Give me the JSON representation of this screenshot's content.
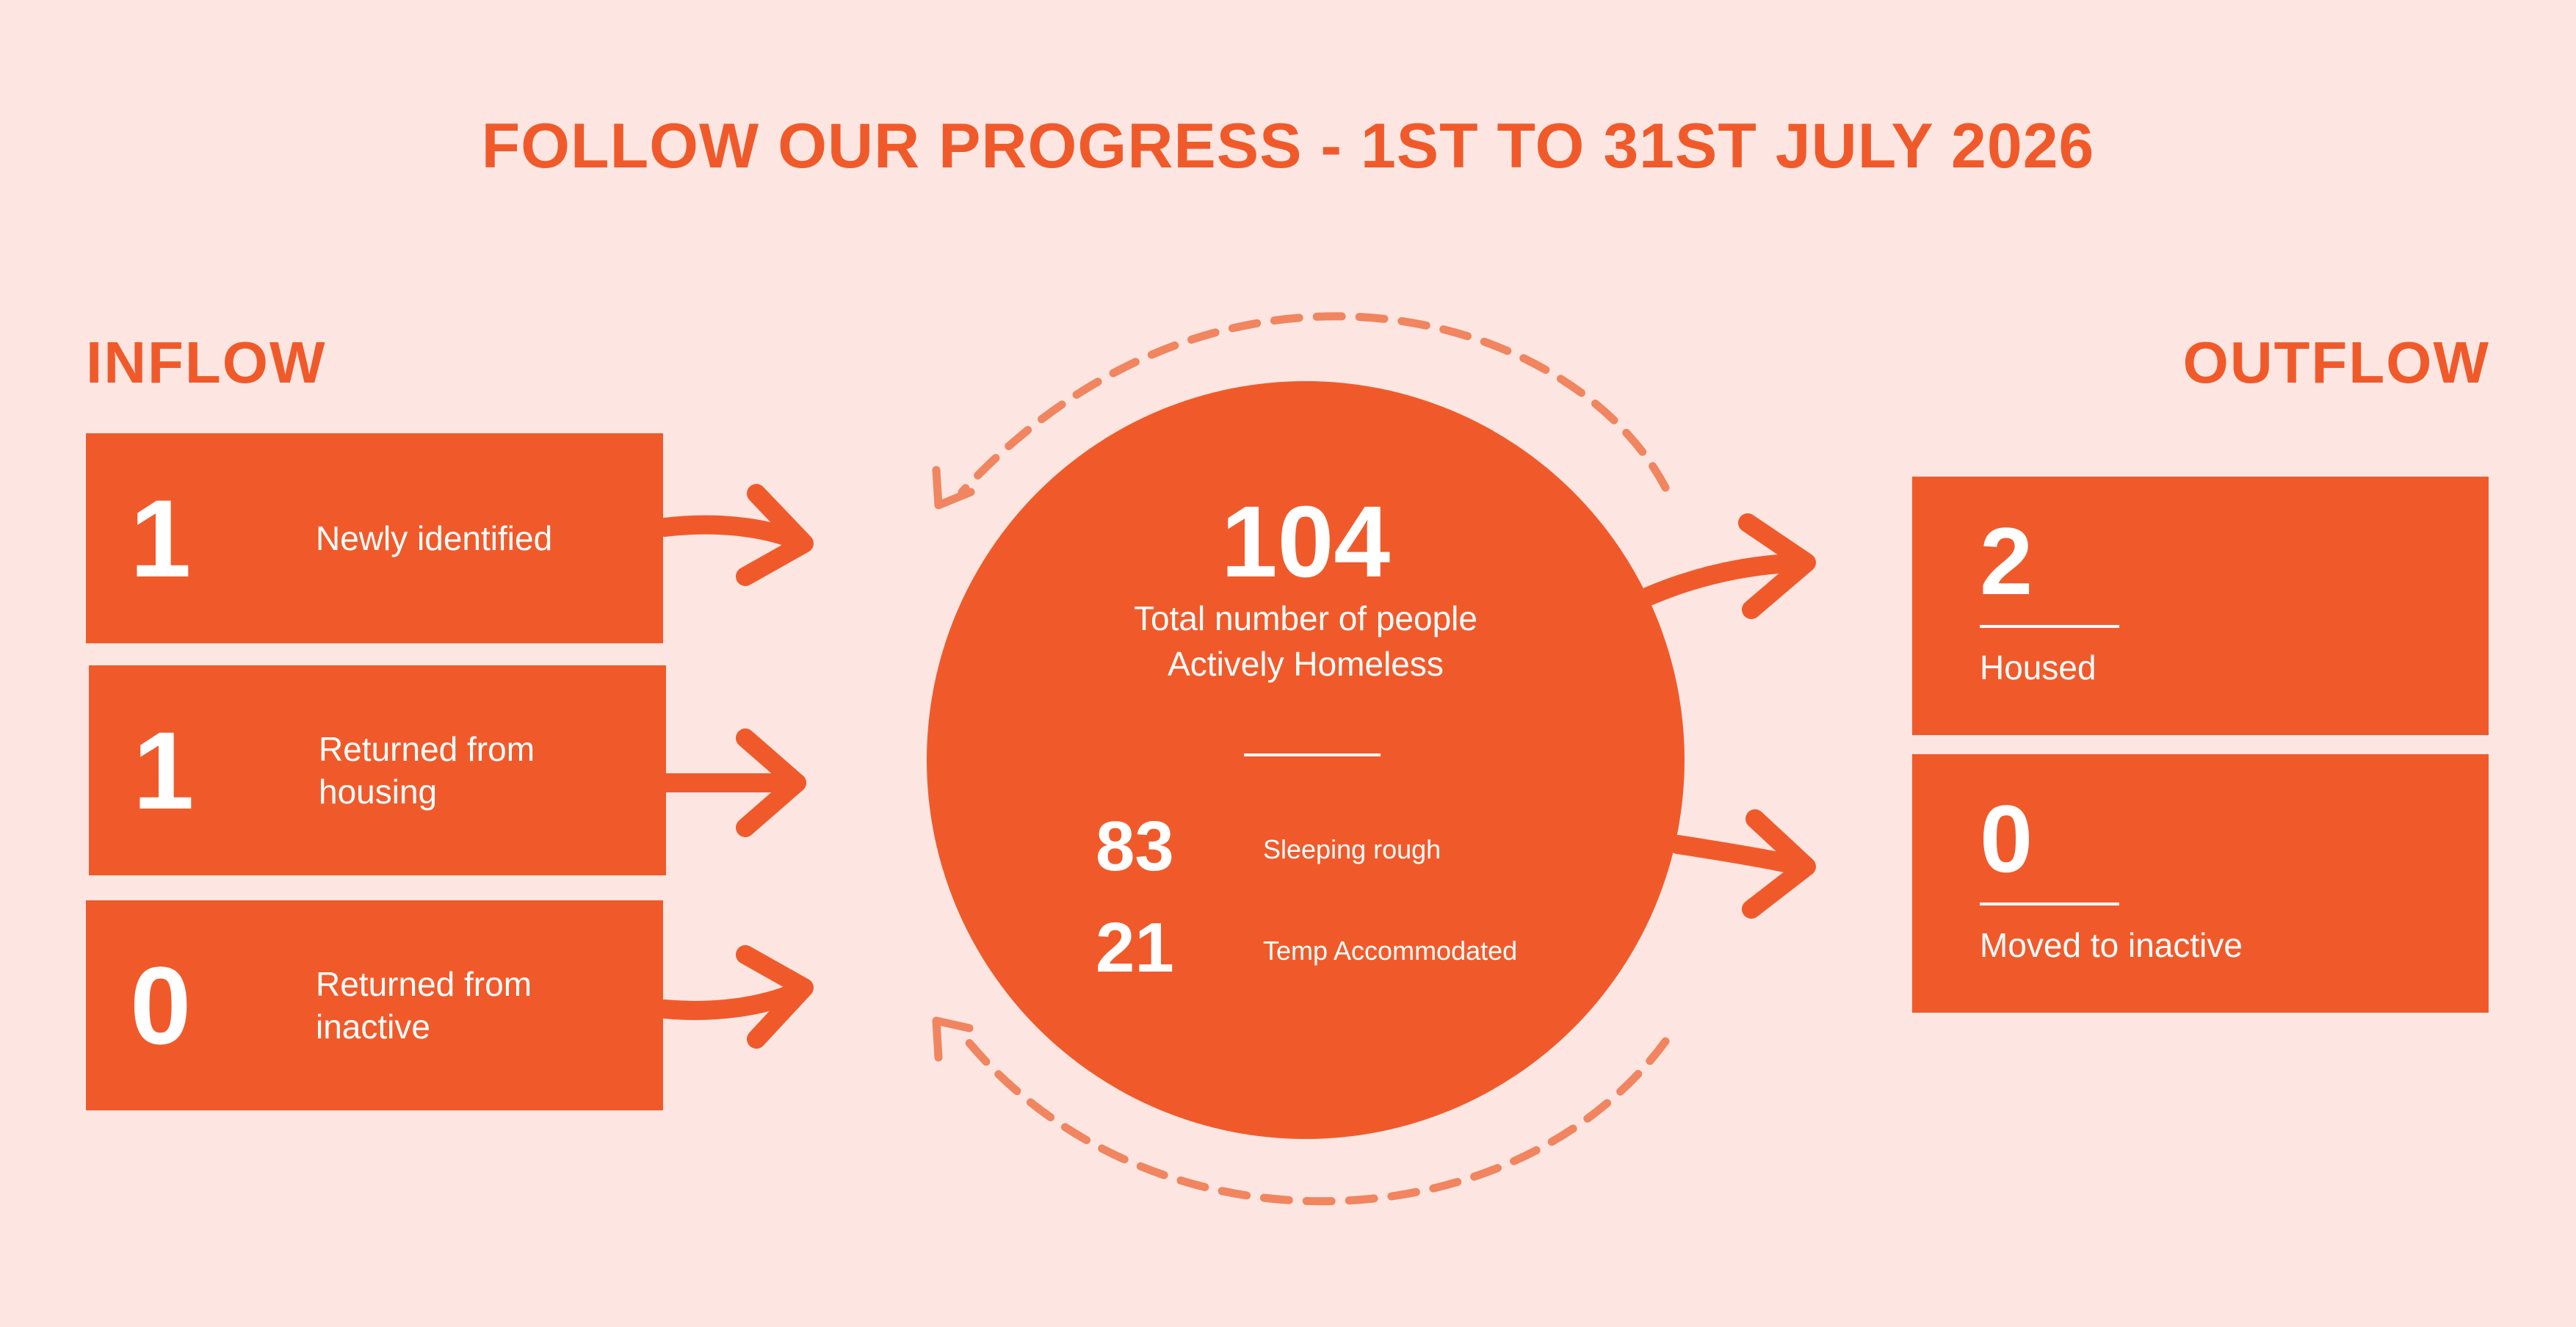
{
  "title": "FOLLOW OUR PROGRESS - 1ST TO 31ST JULY 2026",
  "inflow": {
    "heading": "INFLOW",
    "items": [
      {
        "value": "1",
        "label": "Newly identified"
      },
      {
        "value": "1",
        "label": "Returned from housing"
      },
      {
        "value": "0",
        "label": "Returned from inactive"
      }
    ]
  },
  "center": {
    "total": "104",
    "total_label": "Total number of people Actively Homeless",
    "breakdown": [
      {
        "value": "83",
        "label": "Sleeping rough"
      },
      {
        "value": "21",
        "label": "Temp Accommodated"
      }
    ]
  },
  "outflow": {
    "heading": "OUTFLOW",
    "items": [
      {
        "value": "2",
        "label": "Housed"
      },
      {
        "value": "0",
        "label": "Moved to inactive"
      }
    ]
  },
  "colors": {
    "accent": "#F05A2B",
    "dashed_arrow": "#F08560",
    "background": "#FDE6E1"
  }
}
